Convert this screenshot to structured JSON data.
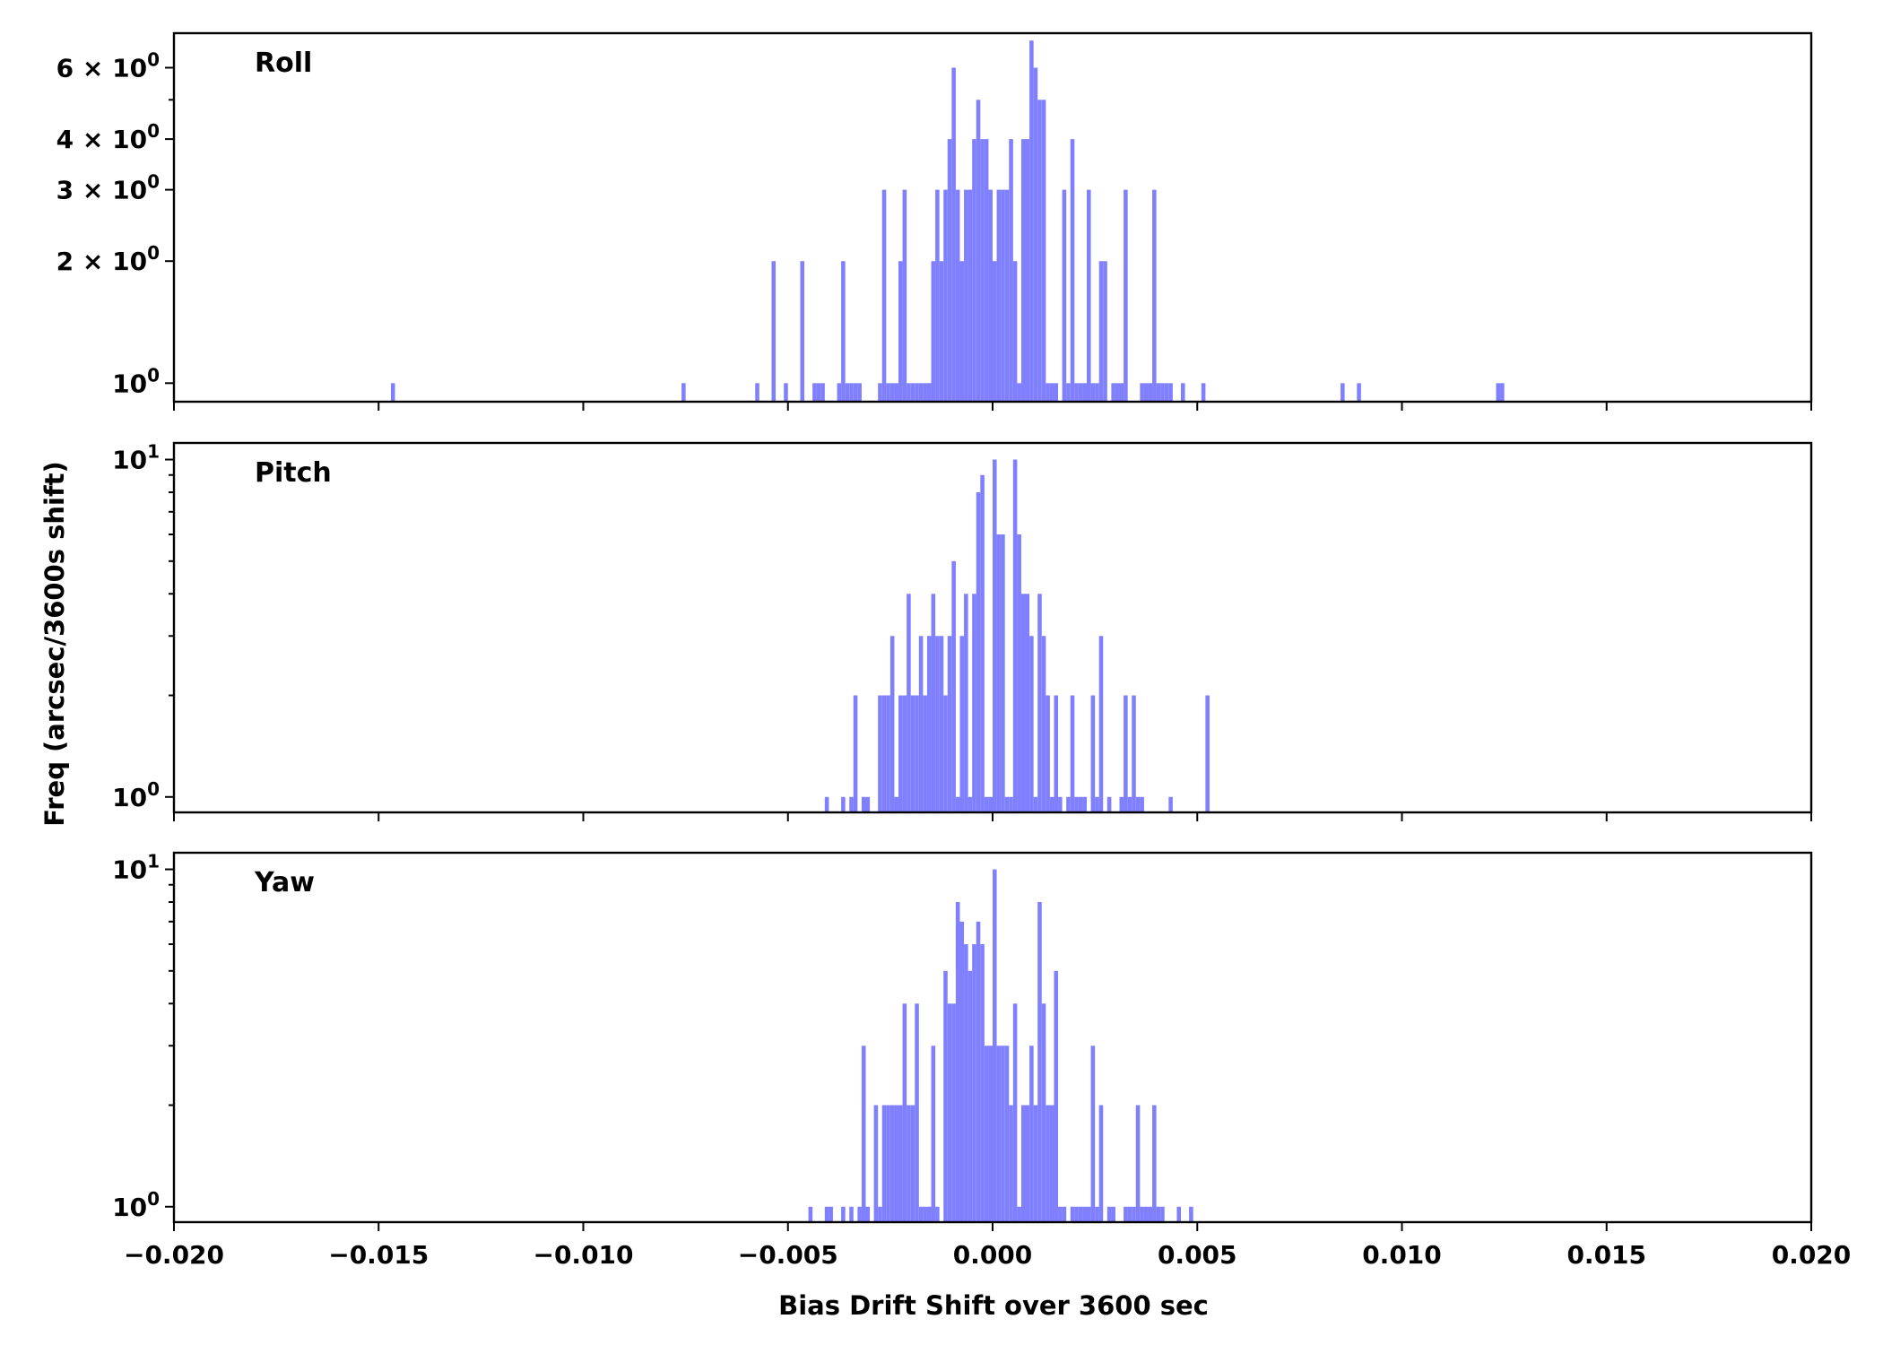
{
  "chart_data": {
    "type": "bar",
    "xlabel": "Bias Drift Shift over 3600 sec",
    "ylabel": "Freq (arcsec/3600s shift)",
    "xlim": [
      -0.02,
      0.02
    ],
    "x_ticks": [
      "−0.020",
      "−0.015",
      "−0.010",
      "−0.005",
      "0.000",
      "0.005",
      "0.010",
      "0.015",
      "0.020"
    ],
    "x_tick_values": [
      -0.02,
      -0.015,
      -0.01,
      -0.005,
      0.0,
      0.005,
      0.01,
      0.015,
      0.02
    ],
    "yscale": "log",
    "bar_color": "#8080ff",
    "bin_width": 0.0001,
    "panels": [
      {
        "label": "Roll",
        "ylim": [
          0.9,
          7.3
        ],
        "y_ticks": [
          {
            "value": 1,
            "base": "10",
            "exp": "0",
            "coef": ""
          },
          {
            "value": 2,
            "base": "10",
            "exp": "0",
            "coef": "2 × "
          },
          {
            "value": 3,
            "base": "10",
            "exp": "0",
            "coef": "3 × "
          },
          {
            "value": 4,
            "base": "10",
            "exp": "0",
            "coef": "4 × "
          },
          {
            "value": 6,
            "base": "10",
            "exp": "0",
            "coef": "6 × "
          }
        ],
        "minor_ticks": [
          5
        ],
        "bins": [
          [
            -0.0147,
            1
          ],
          [
            -0.0076,
            1
          ],
          [
            -0.0058,
            1
          ],
          [
            -0.0054,
            2
          ],
          [
            -0.0051,
            1
          ],
          [
            -0.0047,
            2
          ],
          [
            -0.0044,
            1
          ],
          [
            -0.0043,
            1
          ],
          [
            -0.0042,
            1
          ],
          [
            -0.0038,
            1
          ],
          [
            -0.0037,
            2
          ],
          [
            -0.0036,
            1
          ],
          [
            -0.0035,
            1
          ],
          [
            -0.0034,
            1
          ],
          [
            -0.0033,
            1
          ],
          [
            -0.0028,
            1
          ],
          [
            -0.0027,
            3
          ],
          [
            -0.0026,
            1
          ],
          [
            -0.0025,
            1
          ],
          [
            -0.0024,
            1
          ],
          [
            -0.0023,
            2
          ],
          [
            -0.0022,
            3
          ],
          [
            -0.0021,
            1
          ],
          [
            -0.002,
            1
          ],
          [
            -0.0019,
            1
          ],
          [
            -0.0018,
            1
          ],
          [
            -0.0017,
            1
          ],
          [
            -0.0016,
            1
          ],
          [
            -0.0015,
            2
          ],
          [
            -0.0014,
            3
          ],
          [
            -0.0013,
            2
          ],
          [
            -0.0012,
            3
          ],
          [
            -0.0011,
            4
          ],
          [
            -0.001,
            6
          ],
          [
            -0.0009,
            3
          ],
          [
            -0.0008,
            2
          ],
          [
            -0.0007,
            3
          ],
          [
            -0.0006,
            3
          ],
          [
            -0.0005,
            4
          ],
          [
            -0.0004,
            5
          ],
          [
            -0.0003,
            4
          ],
          [
            -0.0002,
            4
          ],
          [
            -0.0001,
            3
          ],
          [
            0.0,
            2
          ],
          [
            0.0001,
            3
          ],
          [
            0.0002,
            3
          ],
          [
            0.0003,
            3
          ],
          [
            0.0004,
            4
          ],
          [
            0.0005,
            2
          ],
          [
            0.0006,
            1
          ],
          [
            0.0007,
            4
          ],
          [
            0.0008,
            4
          ],
          [
            0.0009,
            7
          ],
          [
            0.001,
            6
          ],
          [
            0.0011,
            5
          ],
          [
            0.0012,
            5
          ],
          [
            0.0013,
            1
          ],
          [
            0.0014,
            1
          ],
          [
            0.0015,
            1
          ],
          [
            0.0017,
            3
          ],
          [
            0.0018,
            1
          ],
          [
            0.0019,
            4
          ],
          [
            0.002,
            1
          ],
          [
            0.0021,
            1
          ],
          [
            0.0022,
            1
          ],
          [
            0.0023,
            3
          ],
          [
            0.0024,
            1
          ],
          [
            0.0025,
            1
          ],
          [
            0.0026,
            2
          ],
          [
            0.0027,
            2
          ],
          [
            0.0029,
            1
          ],
          [
            0.003,
            1
          ],
          [
            0.0031,
            1
          ],
          [
            0.0032,
            3
          ],
          [
            0.0036,
            1
          ],
          [
            0.0037,
            1
          ],
          [
            0.0038,
            1
          ],
          [
            0.0039,
            3
          ],
          [
            0.004,
            1
          ],
          [
            0.0041,
            1
          ],
          [
            0.0042,
            1
          ],
          [
            0.0043,
            1
          ],
          [
            0.0046,
            1
          ],
          [
            0.0051,
            1
          ],
          [
            0.0085,
            1
          ],
          [
            0.0089,
            1
          ],
          [
            0.0123,
            1
          ],
          [
            0.0124,
            1
          ]
        ]
      },
      {
        "label": "Pitch",
        "ylim": [
          0.9,
          11.2
        ],
        "y_ticks": [
          {
            "value": 1,
            "base": "10",
            "exp": "0",
            "coef": ""
          },
          {
            "value": 10,
            "base": "10",
            "exp": "1",
            "coef": ""
          }
        ],
        "minor_ticks": [
          2,
          3,
          4,
          5,
          6,
          7,
          8,
          9
        ],
        "bins": [
          [
            -0.0041,
            1
          ],
          [
            -0.0037,
            1
          ],
          [
            -0.0035,
            1
          ],
          [
            -0.0034,
            2
          ],
          [
            -0.0032,
            1
          ],
          [
            -0.0031,
            1
          ],
          [
            -0.0028,
            2
          ],
          [
            -0.0027,
            2
          ],
          [
            -0.0026,
            2
          ],
          [
            -0.0025,
            3
          ],
          [
            -0.0024,
            1
          ],
          [
            -0.0023,
            2
          ],
          [
            -0.0022,
            2
          ],
          [
            -0.0021,
            4
          ],
          [
            -0.002,
            2
          ],
          [
            -0.0019,
            2
          ],
          [
            -0.0018,
            3
          ],
          [
            -0.0017,
            2
          ],
          [
            -0.0016,
            3
          ],
          [
            -0.0015,
            4
          ],
          [
            -0.0014,
            3
          ],
          [
            -0.0013,
            3
          ],
          [
            -0.0012,
            2
          ],
          [
            -0.0011,
            3
          ],
          [
            -0.001,
            5
          ],
          [
            -0.0009,
            1
          ],
          [
            -0.0008,
            3
          ],
          [
            -0.0007,
            4
          ],
          [
            -0.0006,
            1
          ],
          [
            -0.0005,
            4
          ],
          [
            -0.0004,
            8
          ],
          [
            -0.0003,
            9
          ],
          [
            -0.0002,
            1
          ],
          [
            -0.0001,
            1
          ],
          [
            0.0,
            10
          ],
          [
            0.0001,
            6
          ],
          [
            0.0002,
            6
          ],
          [
            0.0003,
            1
          ],
          [
            0.0004,
            1
          ],
          [
            0.0005,
            10
          ],
          [
            0.0006,
            6
          ],
          [
            0.0007,
            4
          ],
          [
            0.0008,
            4
          ],
          [
            0.0009,
            3
          ],
          [
            0.001,
            1
          ],
          [
            0.0011,
            4
          ],
          [
            0.0012,
            3
          ],
          [
            0.0013,
            2
          ],
          [
            0.0014,
            1
          ],
          [
            0.0015,
            2
          ],
          [
            0.0016,
            1
          ],
          [
            0.0018,
            1
          ],
          [
            0.0019,
            2
          ],
          [
            0.002,
            1
          ],
          [
            0.0021,
            1
          ],
          [
            0.0022,
            1
          ],
          [
            0.0024,
            2
          ],
          [
            0.0025,
            1
          ],
          [
            0.0026,
            3
          ],
          [
            0.0028,
            1
          ],
          [
            0.0031,
            1
          ],
          [
            0.0032,
            2
          ],
          [
            0.0033,
            1
          ],
          [
            0.0034,
            2
          ],
          [
            0.0035,
            1
          ],
          [
            0.0036,
            1
          ],
          [
            0.0043,
            1
          ],
          [
            0.0052,
            2
          ]
        ]
      },
      {
        "label": "Yaw",
        "ylim": [
          0.9,
          11.2
        ],
        "y_ticks": [
          {
            "value": 1,
            "base": "10",
            "exp": "0",
            "coef": ""
          },
          {
            "value": 10,
            "base": "10",
            "exp": "1",
            "coef": ""
          }
        ],
        "minor_ticks": [
          2,
          3,
          4,
          5,
          6,
          7,
          8,
          9
        ],
        "bins": [
          [
            -0.0045,
            1
          ],
          [
            -0.0041,
            1
          ],
          [
            -0.004,
            1
          ],
          [
            -0.0037,
            1
          ],
          [
            -0.0035,
            1
          ],
          [
            -0.0033,
            1
          ],
          [
            -0.0032,
            3
          ],
          [
            -0.0031,
            1
          ],
          [
            -0.0029,
            2
          ],
          [
            -0.0028,
            1
          ],
          [
            -0.0027,
            2
          ],
          [
            -0.0026,
            2
          ],
          [
            -0.0025,
            2
          ],
          [
            -0.0024,
            2
          ],
          [
            -0.0023,
            2
          ],
          [
            -0.0022,
            4
          ],
          [
            -0.0021,
            2
          ],
          [
            -0.002,
            2
          ],
          [
            -0.0019,
            4
          ],
          [
            -0.0018,
            1
          ],
          [
            -0.0017,
            1
          ],
          [
            -0.0016,
            1
          ],
          [
            -0.0015,
            3
          ],
          [
            -0.0014,
            1
          ],
          [
            -0.0012,
            5
          ],
          [
            -0.0011,
            4
          ],
          [
            -0.001,
            4
          ],
          [
            -0.0009,
            8
          ],
          [
            -0.0008,
            7
          ],
          [
            -0.0007,
            6
          ],
          [
            -0.0006,
            5
          ],
          [
            -0.0005,
            6
          ],
          [
            -0.0004,
            7
          ],
          [
            -0.0003,
            6
          ],
          [
            -0.0002,
            3
          ],
          [
            -0.0001,
            3
          ],
          [
            0.0,
            10
          ],
          [
            0.0001,
            3
          ],
          [
            0.0002,
            3
          ],
          [
            0.0003,
            3
          ],
          [
            0.0004,
            2
          ],
          [
            0.0005,
            4
          ],
          [
            0.0006,
            1
          ],
          [
            0.0007,
            2
          ],
          [
            0.0008,
            2
          ],
          [
            0.0009,
            3
          ],
          [
            0.001,
            2
          ],
          [
            0.0011,
            8
          ],
          [
            0.0012,
            4
          ],
          [
            0.0013,
            2
          ],
          [
            0.0014,
            2
          ],
          [
            0.0015,
            5
          ],
          [
            0.0016,
            1
          ],
          [
            0.0017,
            1
          ],
          [
            0.0019,
            1
          ],
          [
            0.002,
            1
          ],
          [
            0.0021,
            1
          ],
          [
            0.0022,
            1
          ],
          [
            0.0023,
            1
          ],
          [
            0.0024,
            3
          ],
          [
            0.0025,
            1
          ],
          [
            0.0026,
            2
          ],
          [
            0.0028,
            1
          ],
          [
            0.0029,
            1
          ],
          [
            0.0032,
            1
          ],
          [
            0.0033,
            1
          ],
          [
            0.0034,
            1
          ],
          [
            0.0035,
            2
          ],
          [
            0.0036,
            1
          ],
          [
            0.0037,
            1
          ],
          [
            0.0038,
            1
          ],
          [
            0.0039,
            2
          ],
          [
            0.004,
            1
          ],
          [
            0.0041,
            1
          ],
          [
            0.0045,
            1
          ],
          [
            0.0048,
            1
          ]
        ]
      }
    ]
  }
}
